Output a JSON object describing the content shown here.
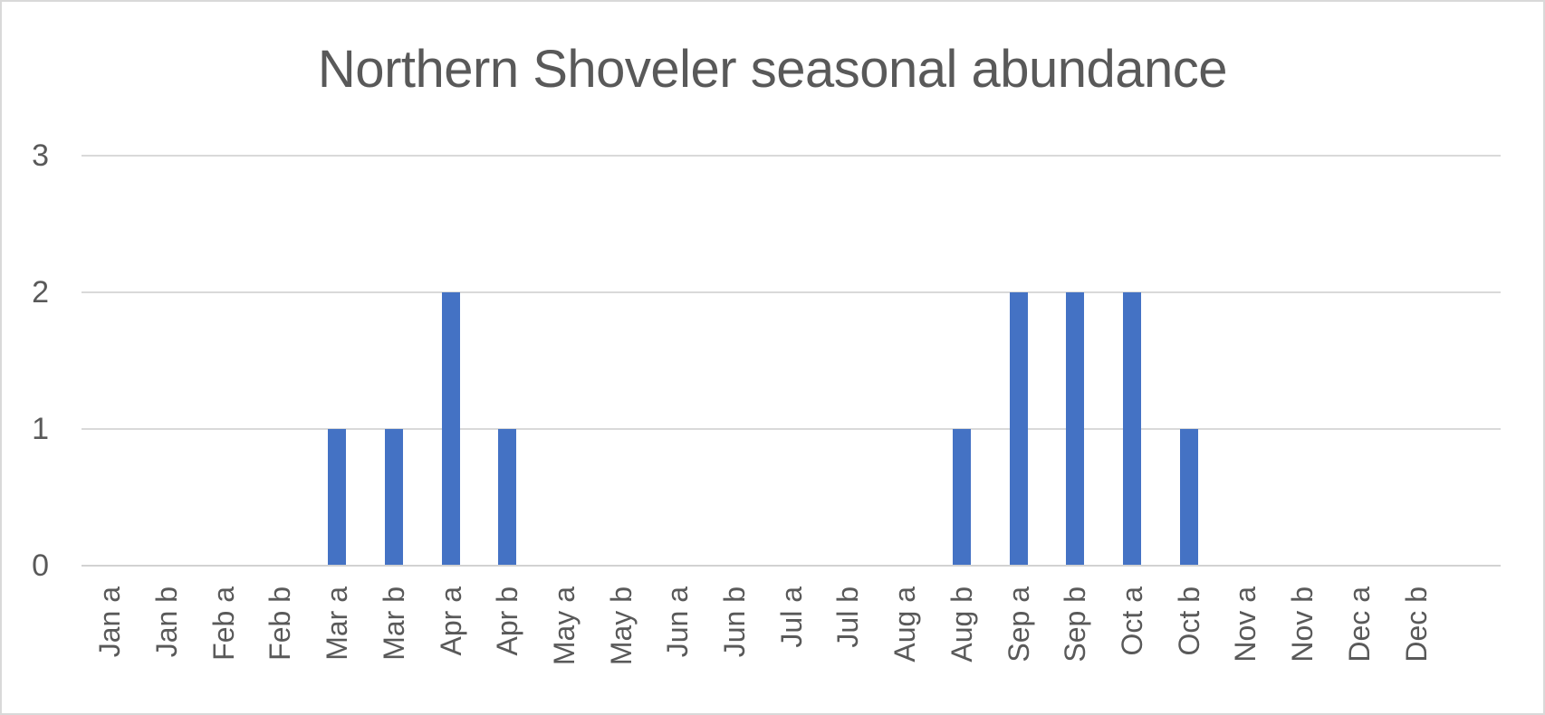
{
  "chart_data": {
    "type": "bar",
    "title": "Northern Shoveler seasonal abundance",
    "categories": [
      "Jan a",
      "Jan b",
      "Feb a",
      "Feb b",
      "Mar a",
      "Mar b",
      "Apr a",
      "Apr b",
      "May a",
      "May b",
      "Jun a",
      "Jun b",
      "Jul a",
      "Jul b",
      "Aug a",
      "Aug b",
      "Sep a",
      "Sep b",
      "Oct a",
      "Oct b",
      "Nov a",
      "Nov b",
      "Dec a",
      "Dec b"
    ],
    "values": [
      0,
      0,
      0,
      0,
      1,
      1,
      2,
      1,
      0,
      0,
      0,
      0,
      0,
      0,
      0,
      1,
      2,
      2,
      2,
      1,
      0,
      0,
      0,
      0
    ],
    "xlabel": "",
    "ylabel": "",
    "ylim": [
      0,
      3
    ],
    "yticks": [
      "0",
      "1",
      "2",
      "3"
    ],
    "x_tick_rotation": -90,
    "grid": "horizontal-only",
    "legend_position": "none",
    "bar_color": "#4472c4",
    "text_color": "#595959",
    "gridline_color": "#d9d9d9",
    "background_color": "#ffffff"
  }
}
